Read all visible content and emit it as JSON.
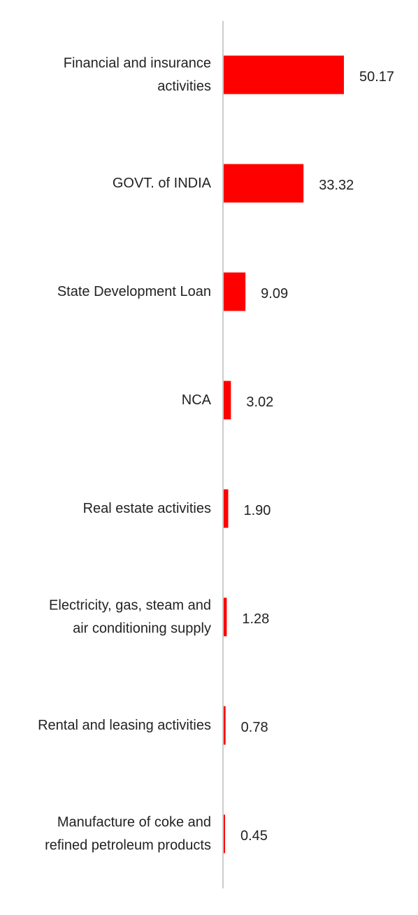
{
  "chart_data": {
    "type": "bar",
    "orientation": "horizontal",
    "title": "",
    "xlabel": "",
    "ylabel": "",
    "categories": [
      [
        "Financial and insurance",
        "activities"
      ],
      [
        "GOVT. of INDIA"
      ],
      [
        "State Development Loan"
      ],
      [
        "NCA"
      ],
      [
        "Real estate activities"
      ],
      [
        "Electricity, gas, steam and",
        "air conditioning supply"
      ],
      [
        "Rental and leasing activities"
      ],
      [
        "Manufacture of coke and",
        "refined petroleum products"
      ]
    ],
    "values": [
      50.17,
      33.32,
      9.09,
      3.02,
      1.9,
      1.28,
      0.78,
      0.45
    ],
    "value_labels": [
      "50.17",
      "33.32",
      "9.09",
      "3.02",
      "1.90",
      "1.28",
      "0.78",
      "0.45"
    ],
    "xlim": [
      0,
      50.17
    ],
    "grid": false,
    "legend": false,
    "bar_color": "#ff0000",
    "axis_color": "#cccccc"
  }
}
